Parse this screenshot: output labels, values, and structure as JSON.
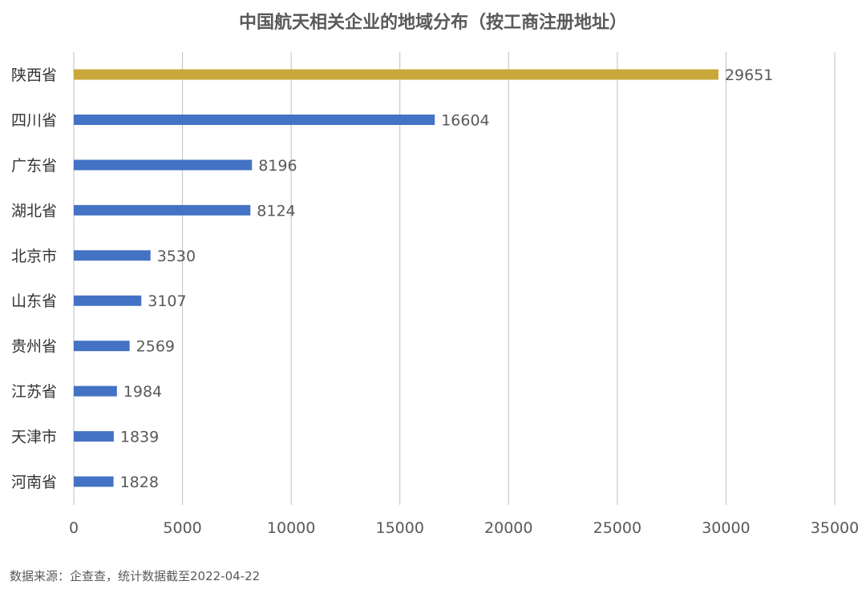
{
  "chart_data": {
    "type": "bar",
    "orientation": "horizontal",
    "title": "中国航天相关企业的地域分布（按工商注册地址）",
    "categories": [
      "陕西省",
      "四川省",
      "广东省",
      "湖北省",
      "北京市",
      "山东省",
      "贵州省",
      "江苏省",
      "天津市",
      "河南省"
    ],
    "values": [
      29651,
      16604,
      8196,
      8124,
      3530,
      3107,
      2569,
      1984,
      1839,
      1828
    ],
    "highlight_index": 0,
    "xlim": [
      0,
      35000
    ],
    "xticks": [
      0,
      5000,
      10000,
      15000,
      20000,
      25000,
      30000,
      35000
    ],
    "grid": true,
    "xlabel": "",
    "ylabel": "",
    "colors": {
      "highlight": "#C9A73A",
      "default": "#4472C4",
      "grid": "#BFBFBF",
      "text": "#595959"
    }
  },
  "footnote": "数据来源：企查查，统计数据截至2022-04-22"
}
